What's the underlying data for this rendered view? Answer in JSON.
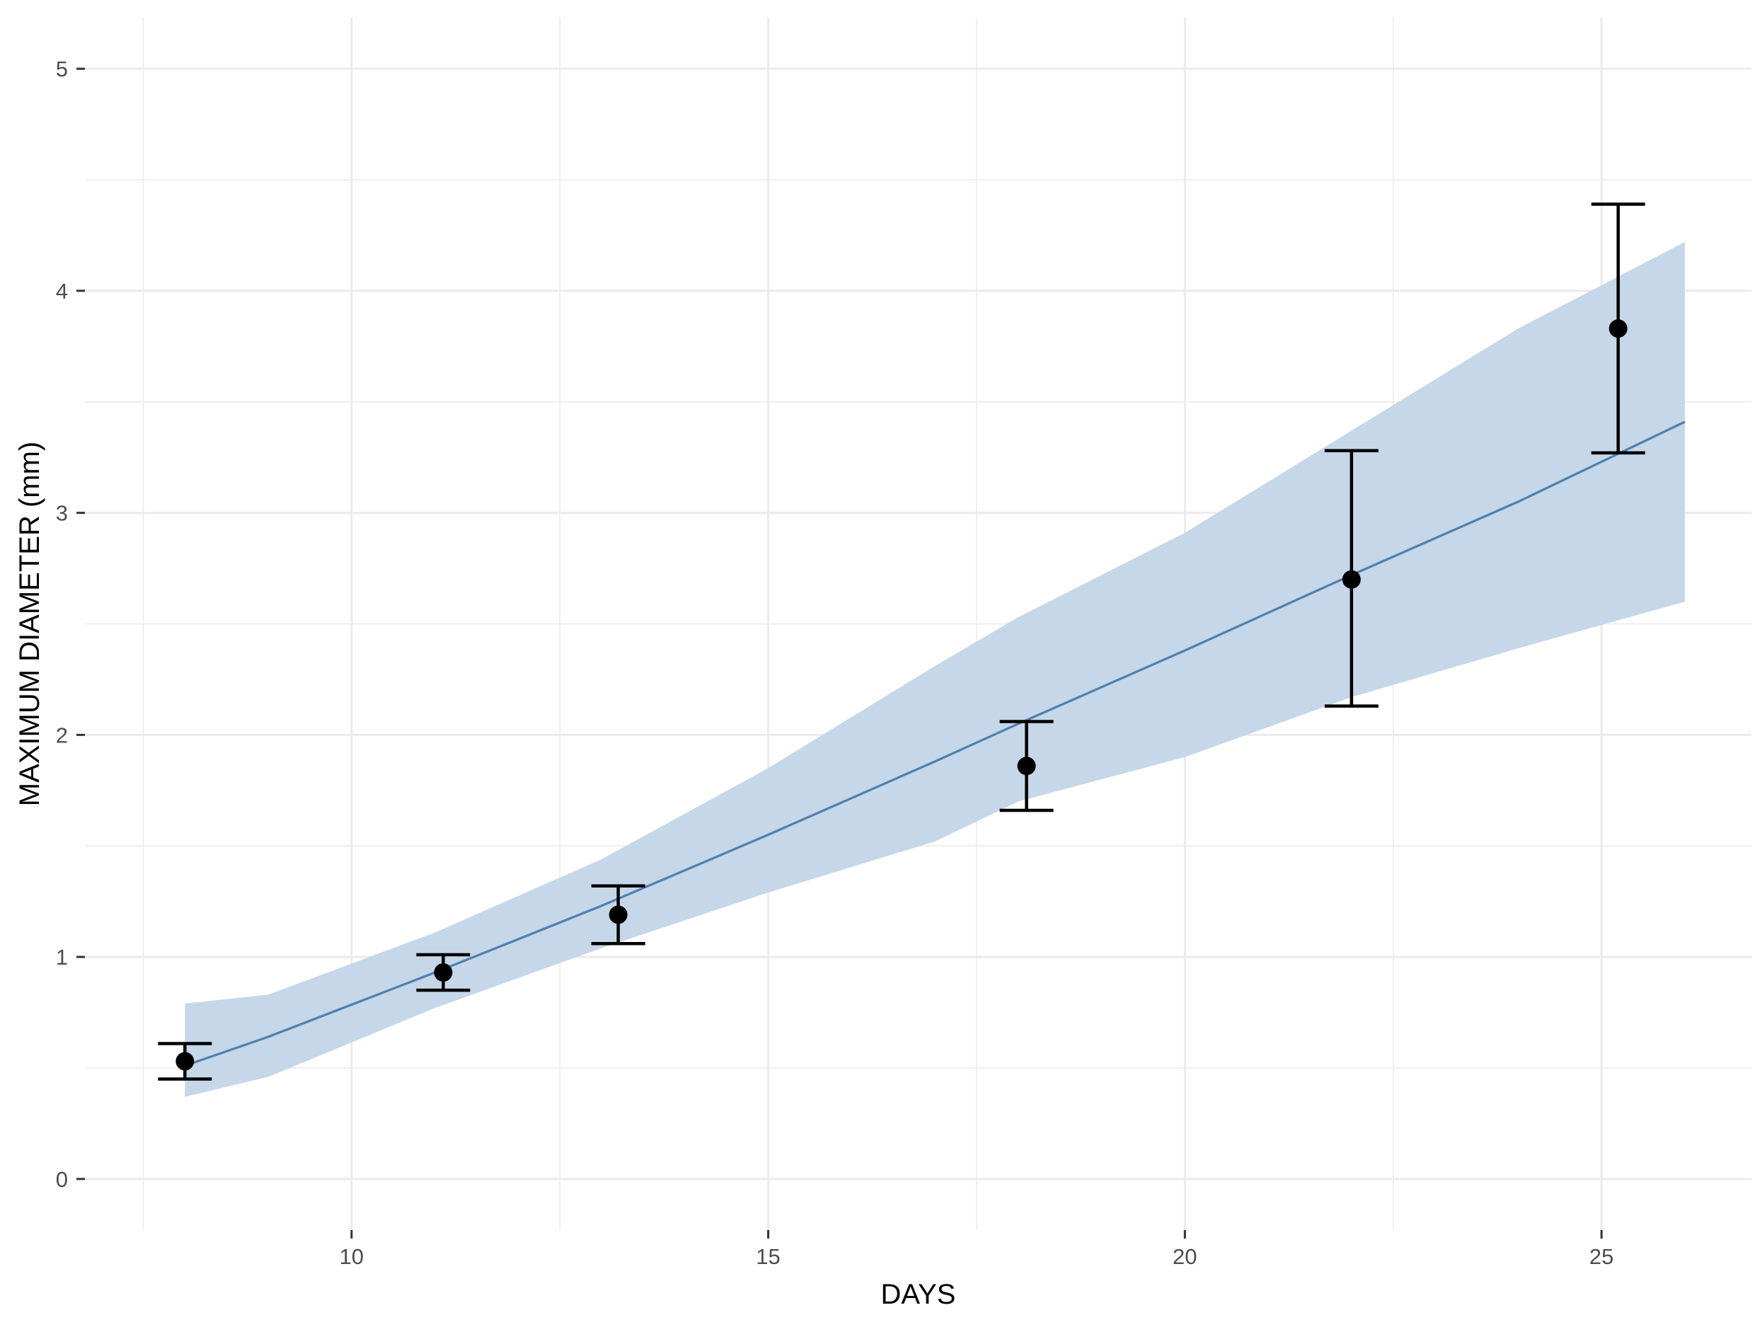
{
  "chart_data": {
    "type": "scatter",
    "xlabel": "DAYS",
    "ylabel": "MAXIMUM DIAMETER (mm)",
    "xlim": [
      6.8,
      26.8
    ],
    "ylim": [
      -0.23,
      5.23
    ],
    "x_ticks": [
      10,
      15,
      20,
      25
    ],
    "y_ticks": [
      0,
      1,
      2,
      3,
      4,
      5
    ],
    "grid": true,
    "legend": "none",
    "points": [
      {
        "x": 8.0,
        "y": 0.53,
        "ymin": 0.45,
        "ymax": 0.61
      },
      {
        "x": 11.1,
        "y": 0.93,
        "ymin": 0.85,
        "ymax": 1.01
      },
      {
        "x": 13.2,
        "y": 1.19,
        "ymin": 1.06,
        "ymax": 1.32
      },
      {
        "x": 18.1,
        "y": 1.86,
        "ymin": 1.66,
        "ymax": 2.06
      },
      {
        "x": 22.0,
        "y": 2.7,
        "ymin": 2.13,
        "ymax": 3.28
      },
      {
        "x": 25.2,
        "y": 3.83,
        "ymin": 3.27,
        "ymax": 4.39
      }
    ],
    "fit": {
      "x": [
        8.0,
        9.0,
        11.0,
        13.0,
        15.0,
        17.0,
        18.0,
        20.0,
        22.0,
        24.0,
        26.0
      ],
      "y": [
        0.51,
        0.64,
        0.93,
        1.23,
        1.55,
        1.88,
        2.05,
        2.38,
        2.72,
        3.05,
        3.41
      ],
      "lower": [
        0.37,
        0.46,
        0.77,
        1.04,
        1.29,
        1.52,
        1.7,
        1.9,
        2.17,
        2.39,
        2.6
      ],
      "upper": [
        0.79,
        0.83,
        1.11,
        1.44,
        1.85,
        2.31,
        2.53,
        2.91,
        3.37,
        3.83,
        4.22
      ]
    },
    "colors": {
      "ribbon": "#c5d7e8",
      "line": "#4f7fad",
      "points": "#000000",
      "grid": "#ebebeb",
      "tick_label": "#4d4d4d"
    }
  }
}
